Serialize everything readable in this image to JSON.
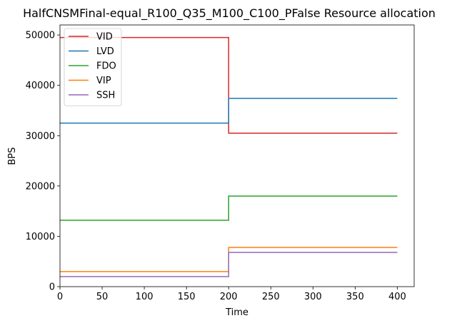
{
  "chart_data": {
    "type": "line",
    "step": "post",
    "title": "HalfCNSMFinal-equal_R100_Q35_M100_C100_PFalse Resource allocation",
    "xlabel": "Time",
    "ylabel": "BPS",
    "xlim": [
      0,
      420
    ],
    "ylim": [
      0,
      52000
    ],
    "xticks": [
      0,
      50,
      100,
      150,
      200,
      250,
      300,
      350,
      400
    ],
    "yticks": [
      0,
      10000,
      20000,
      30000,
      40000,
      50000
    ],
    "grid": false,
    "legend": "upper-left",
    "series": [
      {
        "name": "VID",
        "color": "#d62728",
        "points": [
          [
            0,
            49500
          ],
          [
            200,
            30500
          ],
          [
            400,
            30500
          ]
        ]
      },
      {
        "name": "LVD",
        "color": "#1f77b4",
        "points": [
          [
            0,
            32500
          ],
          [
            200,
            37400
          ],
          [
            400,
            37400
          ]
        ]
      },
      {
        "name": "FDO",
        "color": "#2ca02c",
        "points": [
          [
            0,
            13200
          ],
          [
            200,
            18000
          ],
          [
            400,
            18000
          ]
        ]
      },
      {
        "name": "VIP",
        "color": "#ff7f0e",
        "points": [
          [
            0,
            3000
          ],
          [
            200,
            7800
          ],
          [
            400,
            7800
          ]
        ]
      },
      {
        "name": "SSH",
        "color": "#9467bd",
        "points": [
          [
            0,
            2000
          ],
          [
            200,
            6800
          ],
          [
            400,
            6800
          ]
        ]
      }
    ]
  }
}
